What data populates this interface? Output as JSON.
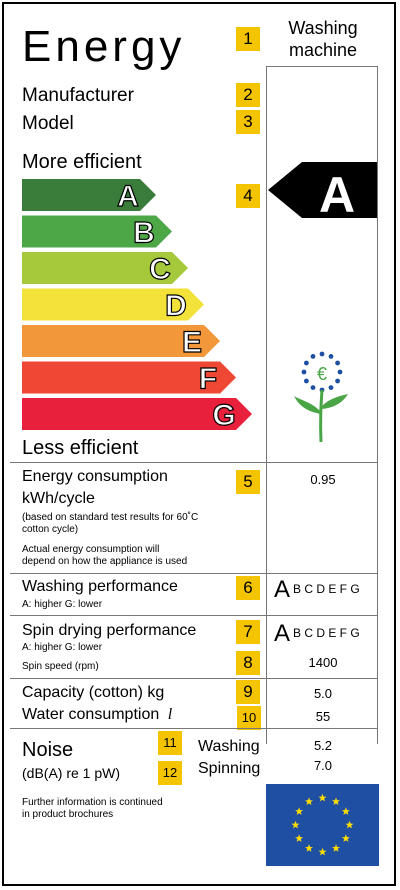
{
  "header": {
    "title": "Energy",
    "appliance": [
      "Washing",
      "machine"
    ]
  },
  "fields": {
    "manufacturer": "Manufacturer",
    "model": "Model"
  },
  "scale": {
    "top_label": "More efficient",
    "bottom_label": "Less efficient",
    "classes": [
      {
        "letter": "A",
        "color": "#3a7d3b"
      },
      {
        "letter": "B",
        "color": "#4ea747"
      },
      {
        "letter": "C",
        "color": "#a5c93a"
      },
      {
        "letter": "D",
        "color": "#f3e23a"
      },
      {
        "letter": "E",
        "color": "#f2973a"
      },
      {
        "letter": "F",
        "color": "#ee4733"
      },
      {
        "letter": "G",
        "color": "#e8203c"
      }
    ],
    "rating": "A"
  },
  "numbers": [
    "1",
    "2",
    "3",
    "4",
    "5",
    "6",
    "7",
    "8",
    "9",
    "10",
    "11",
    "12"
  ],
  "energy": {
    "label": "Energy consumption",
    "unit": "kWh/cycle",
    "note1": "(based on standard test results for 60˚C",
    "note2": "cotton cycle)",
    "note3": "Actual energy consumption will",
    "note4": "depend on how the appliance is used",
    "value": "0.95"
  },
  "washing": {
    "label": "Washing performance",
    "sub": "A: higher  G: lower",
    "grade": "A",
    "rest": "B C D E F G"
  },
  "spin": {
    "label": "Spin drying performance",
    "sub": "A: higher  G: lower",
    "grade": "A",
    "rest": "B C D E F G",
    "speed_label": "Spin speed (rpm)",
    "speed_value": "1400"
  },
  "capacity": {
    "label": "Capacity (cotton) kg",
    "value": "5.0"
  },
  "water": {
    "label": "Water consumption",
    "unit": "l",
    "value": "55"
  },
  "noise": {
    "label": "Noise",
    "unit": "(dB(A) re 1 pW)",
    "washing_label": "Washing",
    "washing_value": "5.2",
    "spinning_label": "Spinning",
    "spinning_value": "7.0"
  },
  "footer": {
    "line1": "Further information is continued",
    "line2": "in product brochures"
  },
  "colors": {
    "badge": "#f5c400",
    "eu_blue": "#1f4fa2",
    "eu_star": "#ffdd00",
    "flower_green": "#4aa546"
  }
}
